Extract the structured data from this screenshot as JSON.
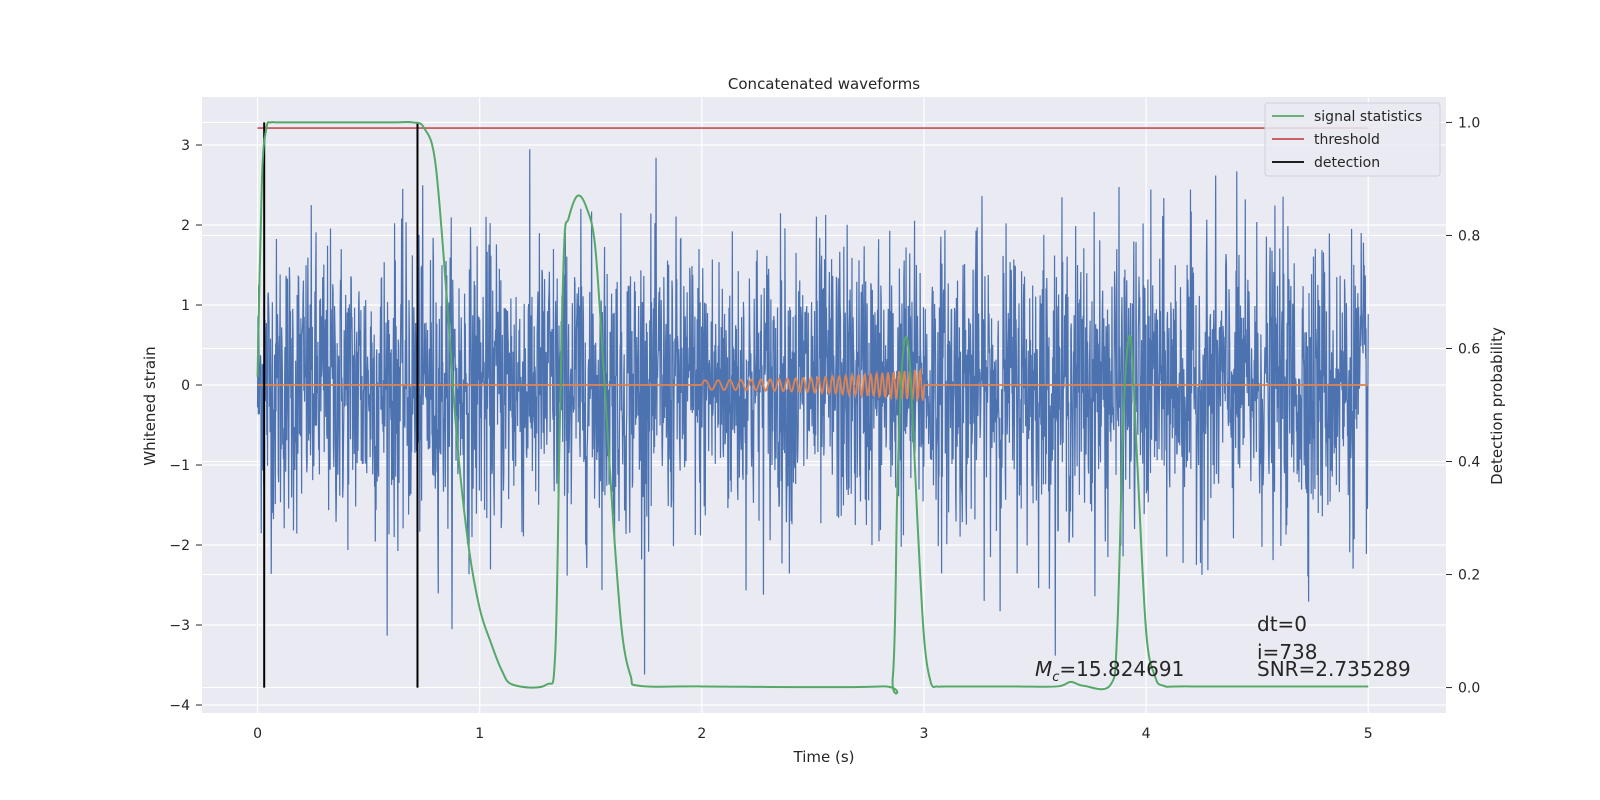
{
  "chart_data": {
    "type": "line",
    "title": "Concatenated waveforms",
    "xlabel": "Time (s)",
    "ylabel": "Whitened strain",
    "y2label": "Detection probability",
    "xlim": [
      -0.25,
      5.35
    ],
    "ylim": [
      -4.1,
      3.6
    ],
    "y2lim": [
      -0.045,
      1.045
    ],
    "xticks": [
      0,
      1,
      2,
      3,
      4,
      5
    ],
    "xtick_labels": [
      "0",
      "1",
      "2",
      "3",
      "4",
      "5"
    ],
    "yticks": [
      -4,
      -3,
      -2,
      -1,
      0,
      1,
      2,
      3
    ],
    "ytick_labels": [
      "−4",
      "−3",
      "−2",
      "−1",
      "0",
      "1",
      "2",
      "3"
    ],
    "y2ticks": [
      0.0,
      0.2,
      0.4,
      0.6,
      0.8,
      1.0
    ],
    "y2tick_labels": [
      "0.0",
      "0.2",
      "0.4",
      "0.6",
      "0.8",
      "1.0"
    ],
    "grid": true,
    "legend_position": "top-right",
    "series": [
      {
        "name": "",
        "color": "#4c72b0",
        "axis": "left",
        "kind": "noise",
        "x_range": [
          0,
          5
        ],
        "std": 0.9,
        "max": 3.1,
        "min": -3.7
      },
      {
        "name": "",
        "color": "#dd8452",
        "axis": "left",
        "kind": "chirp",
        "x_range": [
          0,
          5
        ],
        "chirp_start": 2.0,
        "chirp_end": 3.0,
        "amplitude_end": 0.2
      },
      {
        "name": "signal statistics",
        "color": "#55a868",
        "axis": "right",
        "x": [
          0,
          0.02,
          0.04,
          0.06,
          0.1,
          0.3,
          0.6,
          0.7,
          0.75,
          0.8,
          0.85,
          0.9,
          0.95,
          1.0,
          1.05,
          1.1,
          1.15,
          1.3,
          1.34,
          1.36,
          1.38,
          1.4,
          1.44,
          1.48,
          1.52,
          1.56,
          1.6,
          1.64,
          1.68,
          1.72,
          2.0,
          2.8,
          2.86,
          2.88,
          2.9,
          2.92,
          2.94,
          2.97,
          3.0,
          3.03,
          3.06,
          3.1,
          3.4,
          3.6,
          3.66,
          3.72,
          3.84,
          3.87,
          3.9,
          3.93,
          3.96,
          4.0,
          4.04,
          4.08,
          4.2,
          5.0
        ],
        "y": [
          0.55,
          0.9,
          0.99,
          1.0,
          1.0,
          1.0,
          1.0,
          1.0,
          0.99,
          0.93,
          0.7,
          0.43,
          0.25,
          0.14,
          0.08,
          0.03,
          0.005,
          0.005,
          0.06,
          0.45,
          0.78,
          0.83,
          0.87,
          0.85,
          0.78,
          0.55,
          0.3,
          0.1,
          0.02,
          0.003,
          0.002,
          0.002,
          0.02,
          0.35,
          0.56,
          0.62,
          0.55,
          0.3,
          0.09,
          0.01,
          0.002,
          0.002,
          0.002,
          0.002,
          0.01,
          0.003,
          0.005,
          0.1,
          0.5,
          0.62,
          0.4,
          0.1,
          0.02,
          0.003,
          0.002,
          0.002
        ]
      },
      {
        "name": "threshold",
        "color": "#c44e52",
        "axis": "right",
        "x": [
          0,
          5
        ],
        "y": [
          0.99,
          0.99
        ]
      },
      {
        "name": "detection",
        "color": "#000000",
        "axis": "right",
        "x": [
          0.03,
          0.72
        ],
        "y_span": [
          0,
          1.0
        ]
      }
    ],
    "annotations": {
      "mc": "=15.824691",
      "dt": "dt=0",
      "i": "i=738",
      "snr": "SNR=2.735289"
    }
  }
}
